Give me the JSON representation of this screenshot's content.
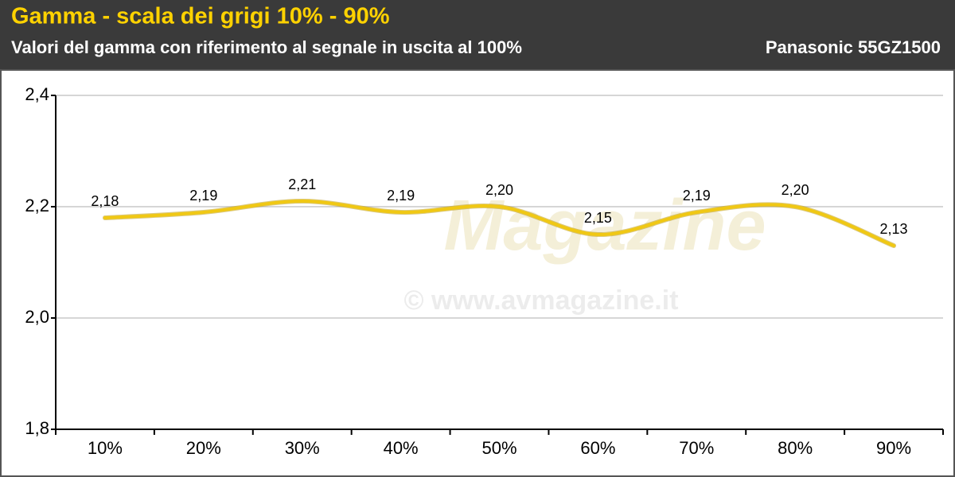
{
  "chart_data": {
    "type": "line",
    "title": "Gamma - scala dei grigi 10% - 90%",
    "subtitle": "Valori del gamma con riferimento al segnale in uscita al 100%",
    "device": "Panasonic 55GZ1500",
    "watermark_logo": "Magazine",
    "watermark_url": "© www.avmagazine.it",
    "categories": [
      "10%",
      "20%",
      "30%",
      "40%",
      "50%",
      "60%",
      "70%",
      "80%",
      "90%"
    ],
    "values": [
      2.18,
      2.19,
      2.21,
      2.19,
      2.2,
      2.15,
      2.19,
      2.2,
      2.13
    ],
    "value_labels": [
      "2,18",
      "2,19",
      "2,21",
      "2,19",
      "2,20",
      "2,15",
      "2,19",
      "2,20",
      "2,13"
    ],
    "color": "#f0c814",
    "ylim": [
      1.8,
      2.4
    ],
    "yticks": [
      {
        "value": 1.8,
        "label": "1,8"
      },
      {
        "value": 2.0,
        "label": "2,0"
      },
      {
        "value": 2.2,
        "label": "2,2"
      },
      {
        "value": 2.4,
        "label": "2,4"
      }
    ],
    "grid": true
  }
}
